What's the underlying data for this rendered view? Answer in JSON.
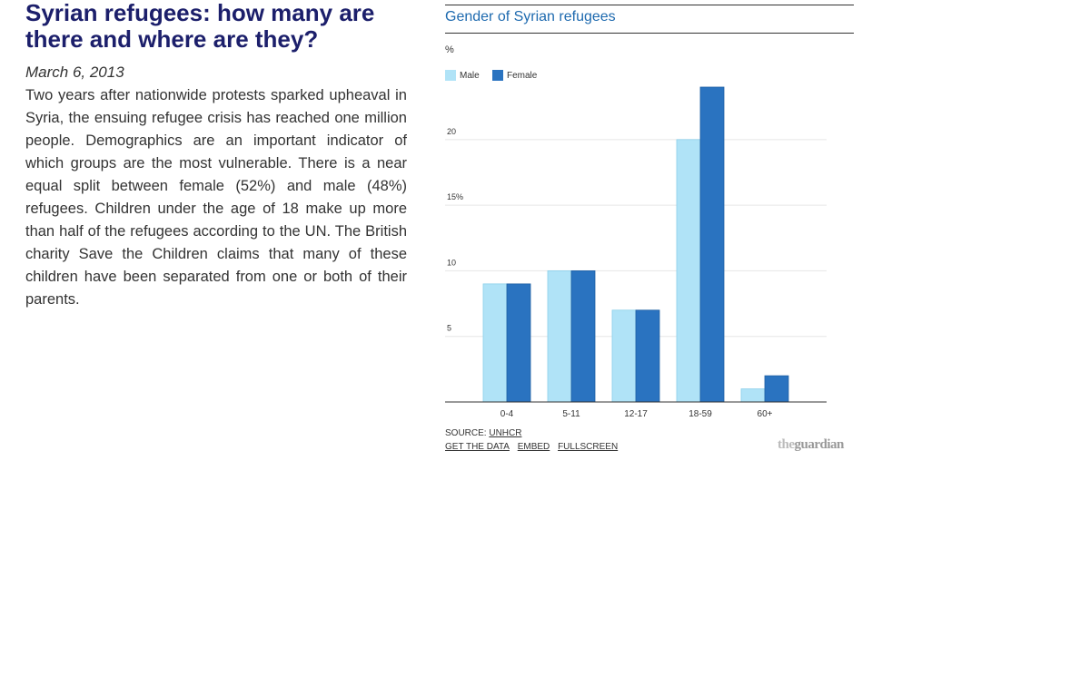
{
  "article": {
    "headline": "Syrian refugees: how many are there and where are they?",
    "date": "March 6, 2013",
    "body": "Two years after nationwide protests sparked upheaval in Syria, the ensuing refugee crisis has reached one million people. Demographics are an important indicator of which groups are the most vulnerable. There is a near equal split between female (52%) and male (48%) refugees. Children under the age of 18 make up more than half of the refugees according to the UN. The British charity Save the Children claims that many of these children have been separated from one or both of their parents."
  },
  "footer": {
    "source_prefix": "SOURCE: ",
    "source_link": "UNHCR",
    "get_data": "GET THE DATA",
    "embed": "EMBED",
    "fullscreen": "FULLSCREEN",
    "logo_the": "the",
    "logo_guardian": "guardian"
  },
  "colors": {
    "male": "#b0e3f7",
    "female": "#2a73c0",
    "title": "#1e6aaf",
    "headline": "#1c1f6b"
  },
  "chart_data": {
    "type": "bar",
    "title": "Gender of Syrian refugees",
    "ylabel": "%",
    "categories": [
      "0-4",
      "5-11",
      "12-17",
      "18-59",
      "60+"
    ],
    "series": [
      {
        "name": "Male",
        "values": [
          9,
          10,
          7,
          20,
          1
        ]
      },
      {
        "name": "Female",
        "values": [
          9,
          10,
          7,
          24,
          2
        ]
      }
    ],
    "yticks": [
      "5",
      "10",
      "15%",
      "20"
    ],
    "ytick_values": [
      5,
      10,
      15,
      20
    ],
    "ylim": [
      0,
      24
    ],
    "grid": true,
    "legend": "top-left"
  }
}
